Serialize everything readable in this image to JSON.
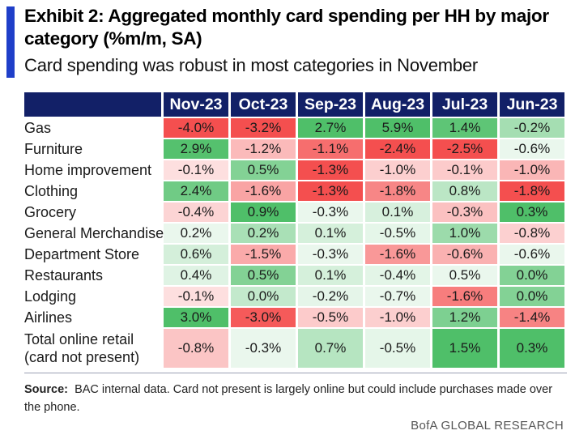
{
  "title": "Exhibit 2: Aggregated monthly card spending per HH by major category (%m/m, SA)",
  "subtitle": "Card spending was robust in most categories in November",
  "source_label": "Source:",
  "source_text": "BAC internal data. Card not present is largely online but could include purchases made over the phone.",
  "brand": "BofA GLOBAL RESEARCH",
  "colors": {
    "header_bg": "#122067",
    "accent_bar": "#1f3fc9",
    "positive_max": "#4fbf69",
    "negative_max": "#f44f4f",
    "neutral": "#ffffff"
  },
  "chart_data": {
    "type": "heatmap",
    "title": "Exhibit 2: Aggregated monthly card spending per HH by major category (%m/m, SA)",
    "subtitle": "Card spending was robust in most categories in November",
    "columns": [
      "Nov-23",
      "Oct-23",
      "Sep-23",
      "Aug-23",
      "Jul-23",
      "Jun-23"
    ],
    "rows": [
      {
        "label": "Gas",
        "values": [
          "-4.0%",
          "-3.2%",
          "2.7%",
          "5.9%",
          "1.4%",
          "-0.2%"
        ]
      },
      {
        "label": "Furniture",
        "values": [
          "2.9%",
          "-1.2%",
          "-1.1%",
          "-2.4%",
          "-2.5%",
          "-0.6%"
        ]
      },
      {
        "label": "Home improvement",
        "values": [
          "-0.1%",
          "0.5%",
          "-1.3%",
          "-1.0%",
          "-0.1%",
          "-1.0%"
        ]
      },
      {
        "label": "Clothing",
        "values": [
          "2.4%",
          "-1.6%",
          "-1.3%",
          "-1.8%",
          "0.8%",
          "-1.8%"
        ]
      },
      {
        "label": "Grocery",
        "values": [
          "-0.4%",
          "0.9%",
          "-0.3%",
          "0.1%",
          "-0.3%",
          "0.3%"
        ]
      },
      {
        "label": "General Merchandise",
        "values": [
          "0.2%",
          "0.2%",
          "0.1%",
          "-0.5%",
          "1.0%",
          "-0.8%"
        ]
      },
      {
        "label": "Department Store",
        "values": [
          "0.6%",
          "-1.5%",
          "-0.3%",
          "-1.6%",
          "-0.6%",
          "-0.6%"
        ]
      },
      {
        "label": "Restaurants",
        "values": [
          "0.4%",
          "0.5%",
          "0.1%",
          "-0.4%",
          "0.5%",
          "0.0%"
        ]
      },
      {
        "label": "Lodging",
        "values": [
          "-0.1%",
          "0.0%",
          "-0.2%",
          "-0.7%",
          "-1.6%",
          "0.0%"
        ]
      },
      {
        "label": "Airlines",
        "values": [
          "3.0%",
          "-3.0%",
          "-0.5%",
          "-1.0%",
          "1.2%",
          "-1.4%"
        ]
      },
      {
        "label": "Total online retail (card not present)",
        "label_lines": [
          "Total online retail",
          "(card not present)"
        ],
        "values": [
          "-0.8%",
          "-0.3%",
          "0.7%",
          "-0.5%",
          "1.5%",
          "0.3%"
        ]
      }
    ],
    "colors_by_column_rank": "green = highest in column, red = lowest in column (per-column heatmap)"
  }
}
